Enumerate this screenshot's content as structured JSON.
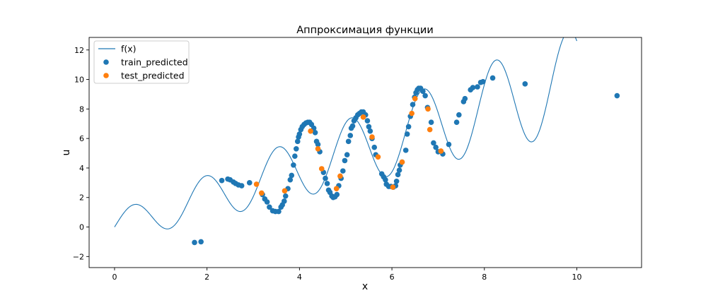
{
  "chart_data": {
    "type": "scatter",
    "title": "Аппроксимация функции",
    "xlabel": "x",
    "ylabel": "u",
    "xlim": [
      -0.55,
      11.4
    ],
    "ylim": [
      -2.75,
      12.85
    ],
    "xticks": [
      0,
      2,
      4,
      6,
      8,
      10
    ],
    "yticks": [
      -2,
      0,
      2,
      4,
      6,
      8,
      10,
      12
    ],
    "grid": false,
    "legend_position": "top-left",
    "function_series": {
      "name": "f(x)",
      "color": "#1f77b4",
      "formula": "sin(4x) + x + x*sin(4x)/4",
      "x_range": [
        0,
        10
      ]
    },
    "series": [
      {
        "name": "train_predicted",
        "color": "#1f77b4",
        "points": [
          [
            1.73,
            -1.05
          ],
          [
            1.87,
            -1.0
          ],
          [
            2.32,
            3.15
          ],
          [
            2.45,
            3.25
          ],
          [
            2.5,
            3.2
          ],
          [
            2.57,
            3.05
          ],
          [
            2.62,
            2.95
          ],
          [
            2.68,
            2.85
          ],
          [
            2.75,
            2.8
          ],
          [
            2.92,
            3.0
          ],
          [
            3.2,
            2.2
          ],
          [
            3.25,
            1.9
          ],
          [
            3.3,
            1.7
          ],
          [
            3.35,
            1.35
          ],
          [
            3.42,
            1.1
          ],
          [
            3.48,
            1.05
          ],
          [
            3.55,
            1.05
          ],
          [
            3.6,
            1.35
          ],
          [
            3.63,
            1.5
          ],
          [
            3.67,
            1.75
          ],
          [
            3.7,
            2.1
          ],
          [
            3.75,
            2.6
          ],
          [
            3.8,
            3.2
          ],
          [
            3.83,
            3.5
          ],
          [
            3.87,
            4.2
          ],
          [
            3.9,
            4.8
          ],
          [
            3.93,
            5.3
          ],
          [
            3.96,
            5.8
          ],
          [
            3.98,
            6.1
          ],
          [
            4.0,
            6.3
          ],
          [
            4.03,
            6.6
          ],
          [
            4.06,
            6.8
          ],
          [
            4.1,
            6.95
          ],
          [
            4.14,
            7.05
          ],
          [
            4.18,
            7.1
          ],
          [
            4.22,
            7.1
          ],
          [
            4.26,
            6.95
          ],
          [
            4.31,
            6.7
          ],
          [
            4.34,
            6.4
          ],
          [
            4.37,
            5.8
          ],
          [
            4.4,
            5.6
          ],
          [
            4.44,
            5.1
          ],
          [
            4.52,
            3.7
          ],
          [
            4.56,
            3.3
          ],
          [
            4.6,
            2.95
          ],
          [
            4.63,
            2.5
          ],
          [
            4.66,
            2.35
          ],
          [
            4.7,
            2.1
          ],
          [
            4.73,
            2.0
          ],
          [
            4.77,
            2.05
          ],
          [
            4.81,
            2.2
          ],
          [
            4.85,
            2.8
          ],
          [
            4.9,
            3.3
          ],
          [
            4.94,
            3.8
          ],
          [
            4.98,
            4.5
          ],
          [
            5.03,
            4.9
          ],
          [
            5.06,
            5.8
          ],
          [
            5.1,
            6.2
          ],
          [
            5.12,
            6.7
          ],
          [
            5.15,
            6.85
          ],
          [
            5.18,
            7.2
          ],
          [
            5.22,
            7.4
          ],
          [
            5.26,
            7.6
          ],
          [
            5.3,
            7.7
          ],
          [
            5.34,
            7.8
          ],
          [
            5.38,
            7.8
          ],
          [
            5.43,
            7.6
          ],
          [
            5.47,
            7.2
          ],
          [
            5.5,
            6.8
          ],
          [
            5.53,
            6.5
          ],
          [
            5.57,
            6.0
          ],
          [
            5.62,
            5.4
          ],
          [
            5.65,
            4.9
          ],
          [
            5.78,
            3.6
          ],
          [
            5.82,
            3.4
          ],
          [
            5.86,
            3.2
          ],
          [
            5.88,
            2.9
          ],
          [
            5.93,
            2.75
          ],
          [
            5.98,
            2.75
          ],
          [
            6.03,
            2.7
          ],
          [
            6.08,
            2.8
          ],
          [
            6.1,
            3.1
          ],
          [
            6.13,
            3.55
          ],
          [
            6.16,
            3.85
          ],
          [
            6.18,
            4.2
          ],
          [
            6.22,
            4.4
          ],
          [
            6.3,
            5.2
          ],
          [
            6.33,
            6.3
          ],
          [
            6.36,
            6.8
          ],
          [
            6.4,
            7.5
          ],
          [
            6.45,
            8.3
          ],
          [
            6.49,
            8.8
          ],
          [
            6.52,
            9.1
          ],
          [
            6.55,
            9.3
          ],
          [
            6.58,
            9.4
          ],
          [
            6.62,
            9.4
          ],
          [
            6.67,
            9.2
          ],
          [
            6.72,
            8.9
          ],
          [
            6.77,
            8.1
          ],
          [
            6.85,
            7.1
          ],
          [
            6.9,
            5.7
          ],
          [
            6.95,
            5.4
          ],
          [
            7.0,
            5.1
          ],
          [
            7.1,
            4.95
          ],
          [
            7.23,
            5.6
          ],
          [
            7.4,
            7.1
          ],
          [
            7.45,
            7.6
          ],
          [
            7.55,
            8.5
          ],
          [
            7.58,
            8.7
          ],
          [
            7.7,
            9.3
          ],
          [
            7.75,
            9.45
          ],
          [
            7.85,
            9.5
          ],
          [
            7.92,
            9.8
          ],
          [
            7.97,
            9.85
          ],
          [
            8.18,
            10.1
          ],
          [
            8.88,
            9.7
          ],
          [
            10.87,
            8.9
          ]
        ]
      },
      {
        "name": "test_predicted",
        "color": "#ff7f0e",
        "points": [
          [
            3.07,
            2.9
          ],
          [
            3.18,
            2.3
          ],
          [
            3.68,
            2.45
          ],
          [
            4.24,
            6.5
          ],
          [
            4.4,
            5.3
          ],
          [
            4.48,
            3.95
          ],
          [
            4.8,
            2.6
          ],
          [
            4.88,
            3.45
          ],
          [
            5.38,
            7.45
          ],
          [
            5.57,
            6.1
          ],
          [
            5.7,
            4.75
          ],
          [
            6.02,
            2.7
          ],
          [
            6.22,
            4.4
          ],
          [
            6.43,
            7.7
          ],
          [
            6.5,
            8.7
          ],
          [
            6.78,
            8.0
          ],
          [
            6.82,
            6.6
          ],
          [
            7.06,
            5.15
          ]
        ]
      }
    ]
  }
}
